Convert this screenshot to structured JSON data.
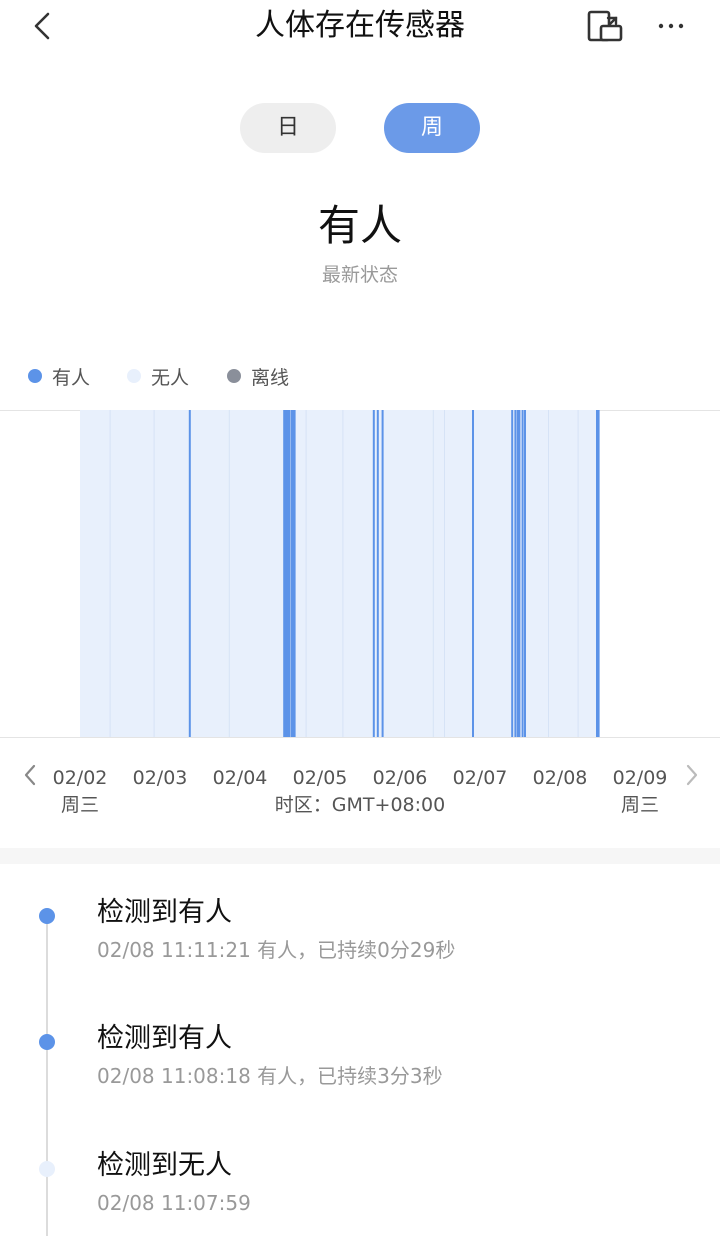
{
  "header": {
    "title": "人体存在传感器",
    "back_icon": "chevron-left-icon",
    "share_icon": "share-icon",
    "more_icon": "more-horizontal-icon"
  },
  "range_tabs": [
    {
      "label": "日",
      "selected": false
    },
    {
      "label": "周",
      "selected": true
    }
  ],
  "status": {
    "value": "有人",
    "caption": "最新状态"
  },
  "legend": [
    {
      "label": "有人",
      "color": "#5c93e8"
    },
    {
      "label": "无人",
      "color": "#e8f0fc"
    },
    {
      "label": "离线",
      "color": "#8a8f9a"
    }
  ],
  "chart_data": {
    "type": "timeline",
    "x_start": "02/02",
    "x_end": "02/09",
    "states": {
      "present": "有人",
      "absent": "无人",
      "offline": "离线"
    },
    "absent_span": {
      "start_day": 0.0,
      "end_day": 6.47
    },
    "present_events_day": [
      1.36,
      2.54,
      2.56,
      2.58,
      2.6,
      2.63,
      2.65,
      2.67,
      3.66,
      3.71,
      3.77,
      4.9,
      5.39,
      5.43,
      5.46,
      5.48,
      5.52,
      5.55,
      6.45,
      6.47
    ],
    "absent_boundaries_day": [
      0.37,
      0.92,
      1.86,
      2.82,
      3.28,
      4.41,
      4.55,
      5.85,
      6.22
    ],
    "colors": {
      "present": "#5c93e8",
      "absent": "#e8f0fc",
      "boundary": "#d6e3f6"
    }
  },
  "x_axis": {
    "ticks": [
      "02/02",
      "02/03",
      "02/04",
      "02/05",
      "02/06",
      "02/07",
      "02/08",
      "02/09"
    ],
    "start_weekday": "周三",
    "end_weekday": "周三",
    "timezone": "时区：GMT+08:00",
    "prev_icon": "chevron-left-icon",
    "next_icon": "chevron-right-icon"
  },
  "events": [
    {
      "title": "检测到有人",
      "detail": "02/08 11:11:21 有人，已持续0分29秒",
      "dot_color": "#5c93e8"
    },
    {
      "title": "检测到有人",
      "detail": "02/08 11:08:18 有人，已持续3分3秒",
      "dot_color": "#5c93e8"
    },
    {
      "title": "检测到无人",
      "detail": "02/08 11:07:59",
      "dot_color": "#e8f0fc"
    }
  ]
}
